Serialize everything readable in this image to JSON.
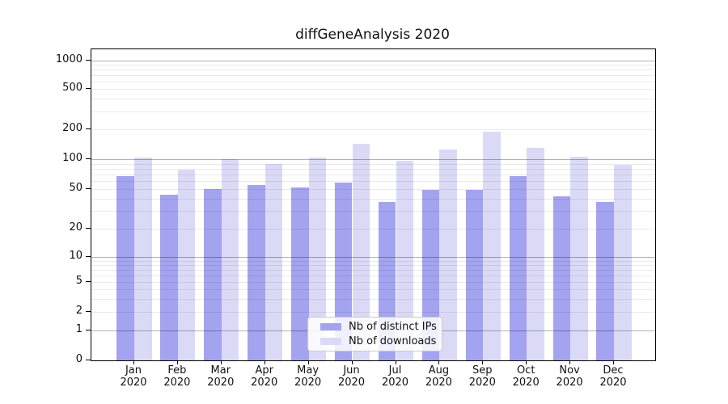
{
  "header": {
    "title": "diffGeneAnalysis 2020"
  },
  "chart_data": {
    "type": "bar",
    "title": "diffGeneAnalysis 2020",
    "yscale": "symlog",
    "grid": "horizontal major and minor gridlines, drawn over bars",
    "legend_position": "lower-center",
    "categories": [
      "Jan 2020",
      "Feb 2020",
      "Mar 2020",
      "Apr 2020",
      "May 2020",
      "Jun 2020",
      "Jul 2020",
      "Aug 2020",
      "Sep 2020",
      "Oct 2020",
      "Nov 2020",
      "Dec 2020"
    ],
    "month_labels": [
      "Jan",
      "Feb",
      "Mar",
      "Apr",
      "May",
      "Jun",
      "Jul",
      "Aug",
      "Sep",
      "Oct",
      "Nov",
      "Dec"
    ],
    "year_label": "2020",
    "series": [
      {
        "name": "Nb of distinct IPs",
        "key": "distinct-ips",
        "color": "#a3a3f0",
        "values": [
          67,
          44,
          50,
          55,
          52,
          58,
          37,
          49,
          49,
          67,
          42,
          37
        ]
      },
      {
        "name": "Nb of downloads",
        "key": "downloads",
        "color": "#dadaf7",
        "values": [
          103,
          78,
          100,
          89,
          103,
          142,
          97,
          126,
          189,
          129,
          106,
          88
        ]
      }
    ],
    "y_tick_values": [
      1000,
      500,
      200,
      100,
      50,
      20,
      10,
      5,
      2,
      1,
      0
    ],
    "major_grid_values": [
      1,
      10,
      100,
      1000
    ],
    "minor_grid_values": [
      2,
      3,
      4,
      5,
      6,
      7,
      8,
      9,
      20,
      30,
      40,
      50,
      60,
      70,
      80,
      90,
      200,
      300,
      400,
      500,
      600,
      700,
      800,
      900
    ],
    "ylim": [
      0,
      1300
    ]
  },
  "colors": {
    "background": "#ffffff",
    "spine": "#000000",
    "text": "#111111",
    "major_grid": "rgba(0,0,0,0.30)",
    "minor_grid": "rgba(0,0,0,0.08)",
    "legend_border": "#c9c9c9"
  }
}
